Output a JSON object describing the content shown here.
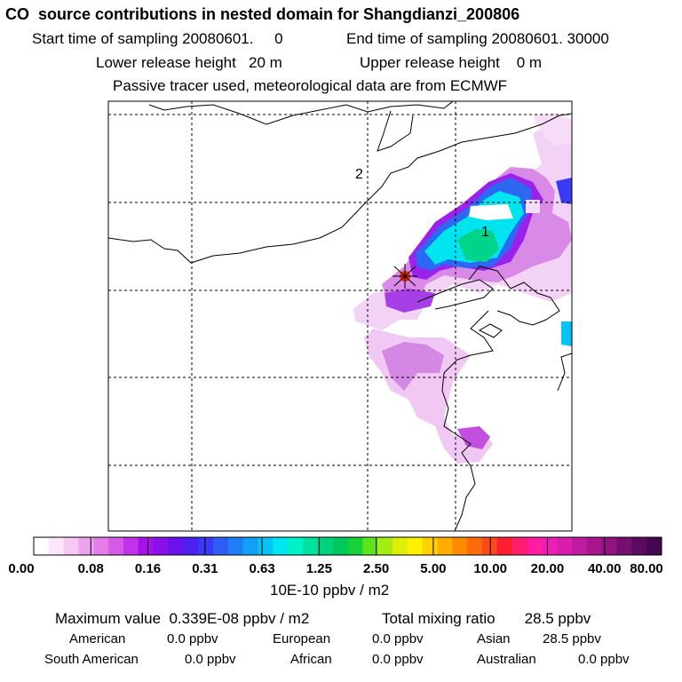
{
  "header": {
    "title": "CO  source contributions in nested domain for Shangdianzi_200806",
    "start_label": "Start time of sampling 20080601.     0",
    "end_label": "End time of sampling 20080601. 30000",
    "lower_release": "Lower release height   20 m",
    "upper_release": "Upper release height    0 m",
    "tracer_note": "Passive tracer used, meteorological data are from ECMWF"
  },
  "map": {
    "markers": [
      {
        "label": "1"
      },
      {
        "label": "2"
      }
    ],
    "release_site": "Shangdianzi",
    "grid": "dashed"
  },
  "colorbar": {
    "tick_labels": [
      "0.00",
      "0.08",
      "0.16",
      "0.31",
      "0.63",
      "1.25",
      "2.50",
      "5.00",
      "10.00",
      "20.00",
      "40.00",
      "80.00"
    ],
    "colors": [
      "#ffffff",
      "#fbe6fb",
      "#f4c9f4",
      "#eda4ee",
      "#e37ee8",
      "#d55ae6",
      "#c232ea",
      "#a611ea",
      "#8a10ea",
      "#6a12ec",
      "#4d1ff0",
      "#3a3af2",
      "#2e5cf4",
      "#1f7ef6",
      "#12a0f7",
      "#08c2f6",
      "#00e6f2",
      "#00f2c9",
      "#00e2a0",
      "#00d27c",
      "#00c85c",
      "#14d23a",
      "#5ee41e",
      "#a6ec12",
      "#dcf00a",
      "#fff000",
      "#ffd000",
      "#ffae00",
      "#ff8c00",
      "#ff6a0a",
      "#ff4a18",
      "#ff1e30",
      "#ff1e6e",
      "#ff1ea2",
      "#f01eb8",
      "#d81eac",
      "#c01a9e",
      "#a8168e",
      "#8e1280",
      "#760e70",
      "#5c0a60",
      "#440650"
    ],
    "unit": "10E-10 ppbv / m2"
  },
  "summary": {
    "max_label": "Maximum value  0.339E-08 ppbv / m2",
    "total_label": "Total mixing ratio       28.5 ppbv",
    "regions": [
      {
        "name": "American",
        "value": "0.0 ppbv"
      },
      {
        "name": "European",
        "value": "0.0 ppbv"
      },
      {
        "name": "Asian",
        "value": "28.5 ppbv"
      },
      {
        "name": "South American",
        "value": "0.0 ppbv"
      },
      {
        "name": "African",
        "value": "0.0 ppbv"
      },
      {
        "name": "Australian",
        "value": "0.0 ppbv"
      }
    ]
  }
}
